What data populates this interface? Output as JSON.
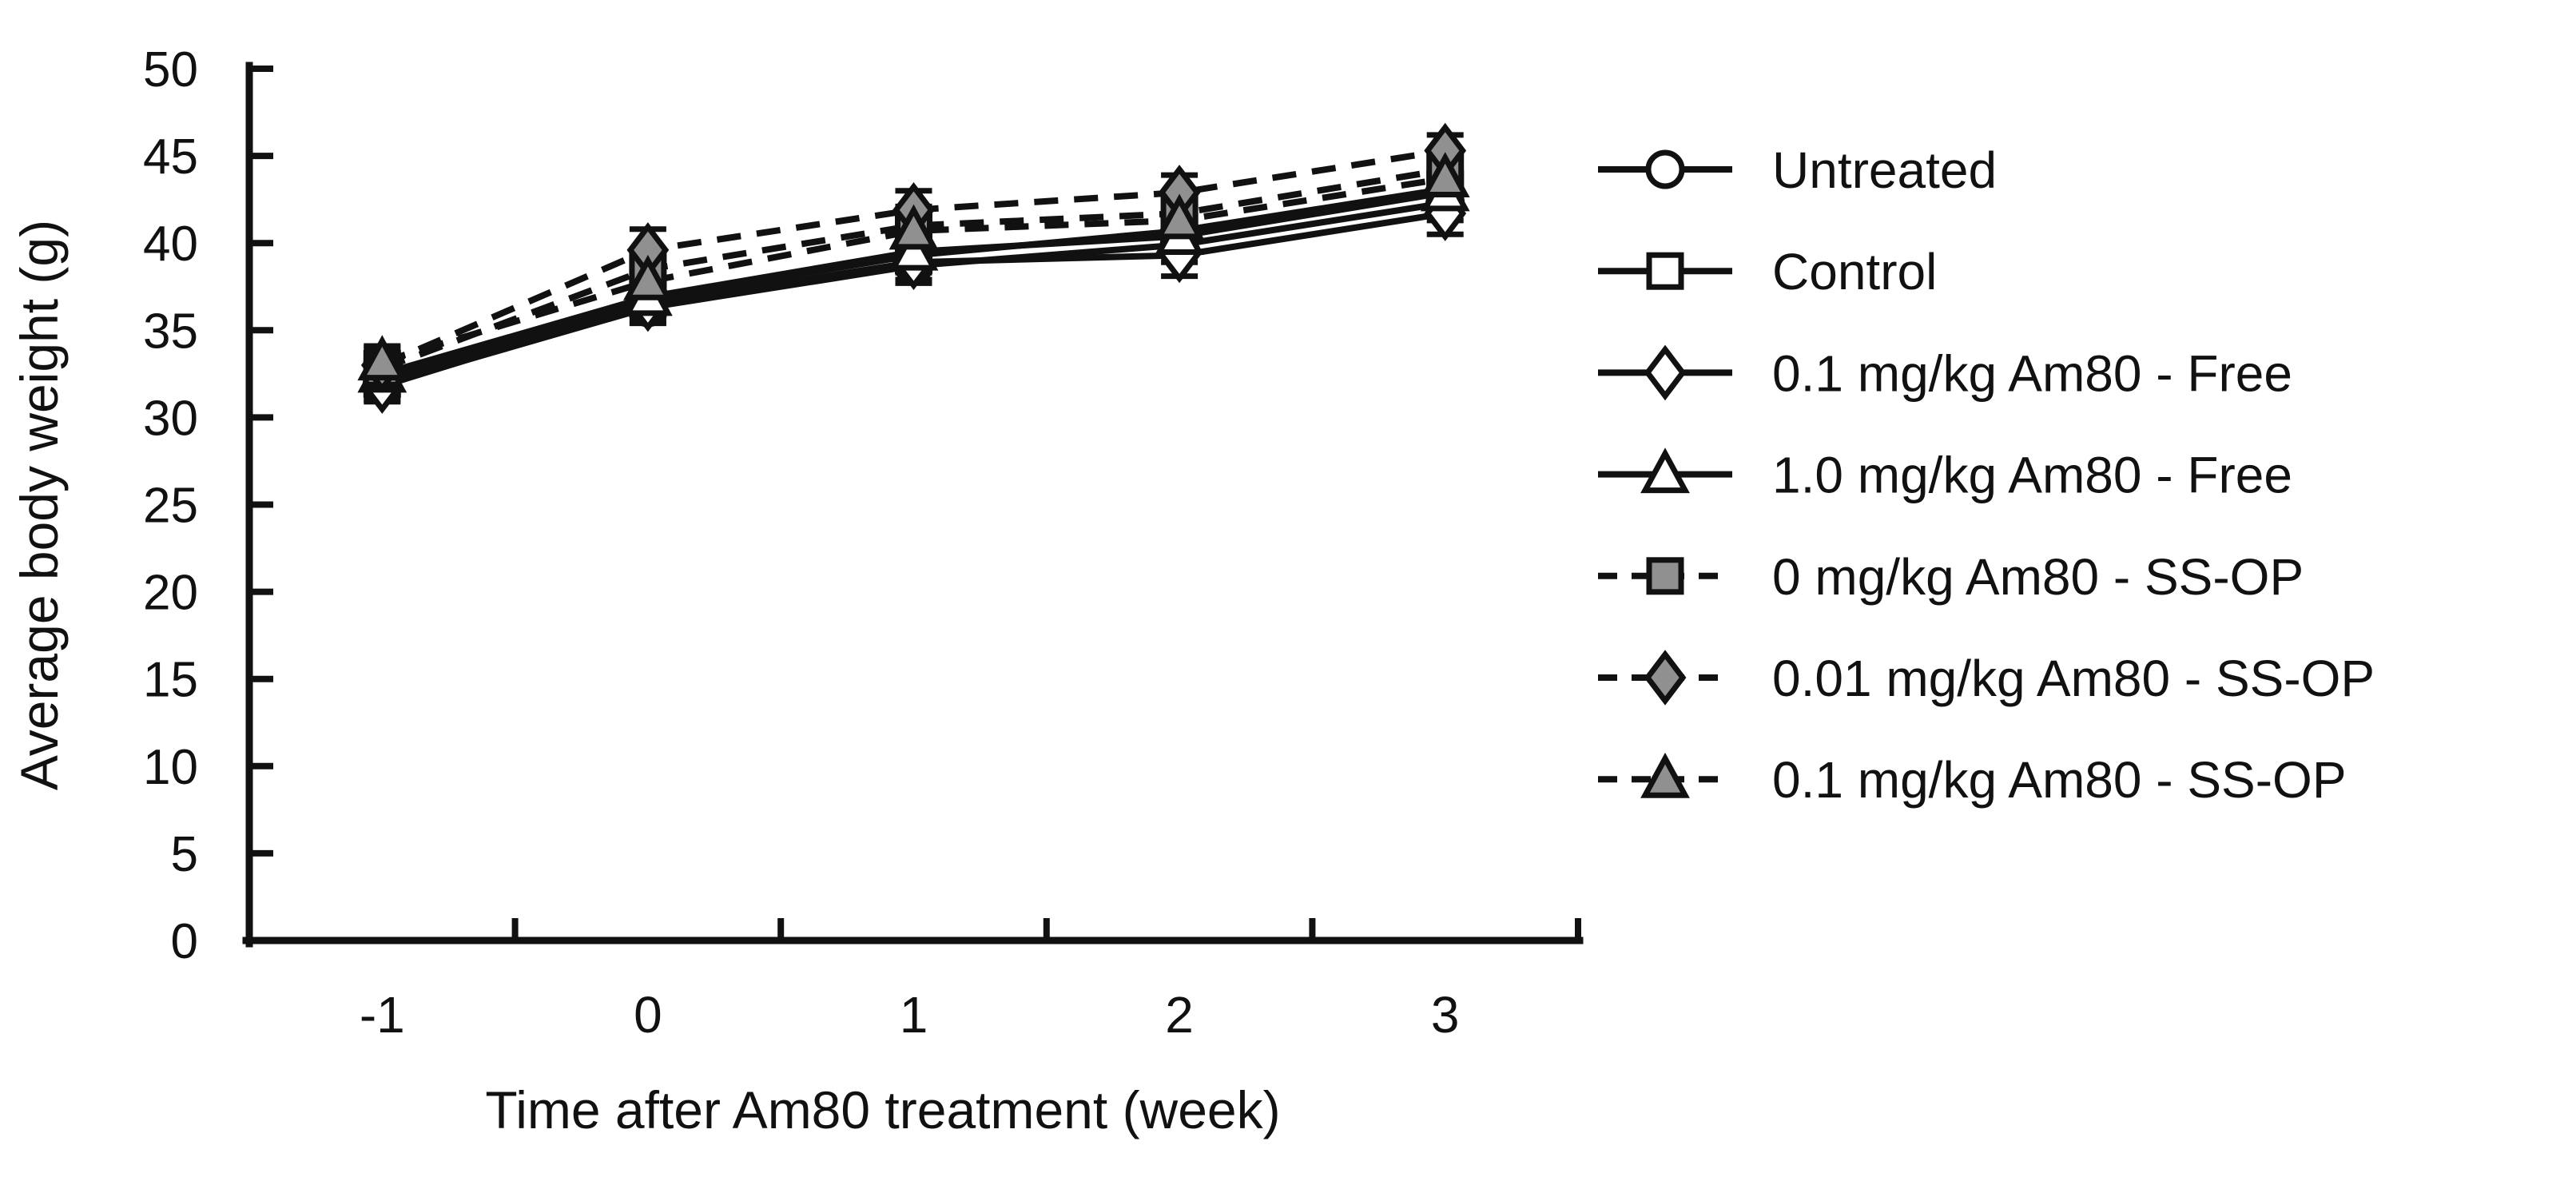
{
  "figure": {
    "background": "#ffffff",
    "axis_color": "#111111",
    "text_color": "#111111",
    "marker_gray_fill": "#909090",
    "marker_open_fill": "#ffffff"
  },
  "chart_data": {
    "type": "line",
    "title": "",
    "xlabel": "Time after Am80 treatment (week)",
    "ylabel": "Average body weight (g)",
    "x_categories": [
      "-1",
      "0",
      "1",
      "2",
      "3"
    ],
    "ylim": [
      0,
      50
    ],
    "yticks": [
      0,
      5,
      10,
      15,
      20,
      25,
      30,
      35,
      40,
      45,
      50
    ],
    "grid": false,
    "legend_position": "right",
    "error_bars": true,
    "series": [
      {
        "name": "Untreated",
        "marker": "circle",
        "marker_fill": "#ffffff",
        "line": "solid",
        "values": [
          31.9,
          36.3,
          38.7,
          39.9,
          42.3
        ],
        "error": [
          0.9,
          0.9,
          1.0,
          1.0,
          1.0
        ]
      },
      {
        "name": "Control",
        "marker": "square",
        "marker_fill": "#ffffff",
        "line": "solid",
        "values": [
          32.2,
          36.8,
          39.3,
          40.7,
          43.1
        ],
        "error": [
          0.9,
          1.0,
          1.0,
          1.0,
          1.0
        ]
      },
      {
        "name": "0.1 mg/kg Am80 - Free",
        "marker": "diamond",
        "marker_fill": "#ffffff",
        "line": "solid",
        "values": [
          31.8,
          36.5,
          38.9,
          39.3,
          41.7
        ],
        "error": [
          0.9,
          1.0,
          1.0,
          1.2,
          1.2
        ]
      },
      {
        "name": "1.0 mg/kg Am80 - Free",
        "marker": "triangle",
        "marker_fill": "#ffffff",
        "line": "solid",
        "values": [
          32.5,
          36.9,
          39.5,
          40.4,
          42.9
        ],
        "error": [
          0.9,
          1.0,
          1.0,
          1.0,
          1.0
        ]
      },
      {
        "name": "0 mg/kg Am80 - SS-OP",
        "marker": "square",
        "marker_fill": "#909090",
        "line": "dashed",
        "values": [
          32.8,
          38.5,
          41.0,
          41.7,
          44.2
        ],
        "error": [
          0.9,
          1.1,
          1.1,
          1.1,
          1.0
        ]
      },
      {
        "name": "0.01 mg/kg Am80 - SS-OP",
        "marker": "diamond",
        "marker_fill": "#909090",
        "line": "dashed",
        "values": [
          33.0,
          39.6,
          41.9,
          42.9,
          45.3
        ],
        "error": [
          1.0,
          1.2,
          1.1,
          1.0,
          0.9
        ]
      },
      {
        "name": "0.1 mg/kg Am80 - SS-OP",
        "marker": "triangle",
        "marker_fill": "#909090",
        "line": "dashed",
        "values": [
          33.2,
          37.8,
          40.7,
          41.3,
          43.7
        ],
        "error": [
          0.9,
          1.1,
          1.0,
          1.0,
          1.0
        ]
      }
    ]
  }
}
